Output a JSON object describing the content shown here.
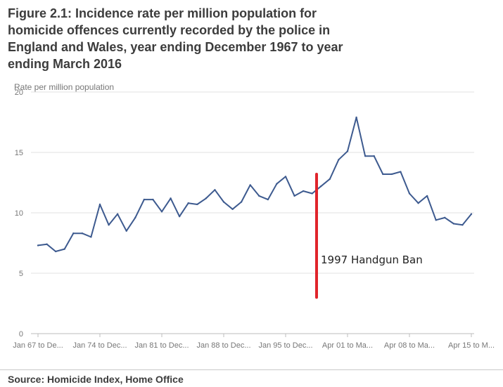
{
  "title": "Figure 2.1: Incidence rate per million population for homicide offences currently recorded by the police in England and Wales, year ending December 1967 to year ending March 2016",
  "source": "Source: Homicide Index, Home Office",
  "colors": {
    "line": "#3d5a8f",
    "annotation": "#e0242b",
    "grid": "#e2e2e2",
    "axis_text": "#777777"
  },
  "chart_data": {
    "type": "line",
    "title": "Figure 2.1: Incidence rate per million population for homicide offences currently recorded by the police in England and Wales, year ending December 1967 to year ending March 2016",
    "ylabel": "Rate per million population",
    "xlabel": "",
    "ylim": [
      0,
      20
    ],
    "yticks": [
      0,
      5,
      10,
      15,
      20
    ],
    "grid": true,
    "x_tick_labels": [
      "Jan 67 to De...",
      "Jan 74 to Dec...",
      "Jan 81 to Dec...",
      "Jan 88 to Dec...",
      "Jan 95 to Dec...",
      "Apr 01 to Ma...",
      "Apr 08 to Ma...",
      "Apr 15 to M..."
    ],
    "series": [
      {
        "values": [
          7.3,
          7.4,
          6.8,
          7.0,
          8.3,
          8.3,
          8.0,
          10.7,
          9.0,
          9.9,
          8.5,
          9.6,
          11.1,
          11.1,
          10.1,
          11.2,
          9.7,
          10.8,
          10.7,
          11.2,
          11.9,
          10.9,
          10.3,
          10.9,
          12.3,
          11.4,
          11.1,
          12.4,
          13.0,
          11.4,
          11.8,
          11.6,
          12.2,
          12.8,
          14.4,
          15.1,
          17.9,
          14.7,
          14.7,
          13.2,
          13.2,
          13.4,
          11.6,
          10.8,
          11.4,
          9.4,
          9.6,
          9.1,
          9.0,
          9.9
        ]
      }
    ],
    "annotations": [
      {
        "text": "1997 Handgun Ban",
        "x_index": 31.5,
        "y_from": 3.0,
        "y_to": 13.2
      }
    ]
  }
}
